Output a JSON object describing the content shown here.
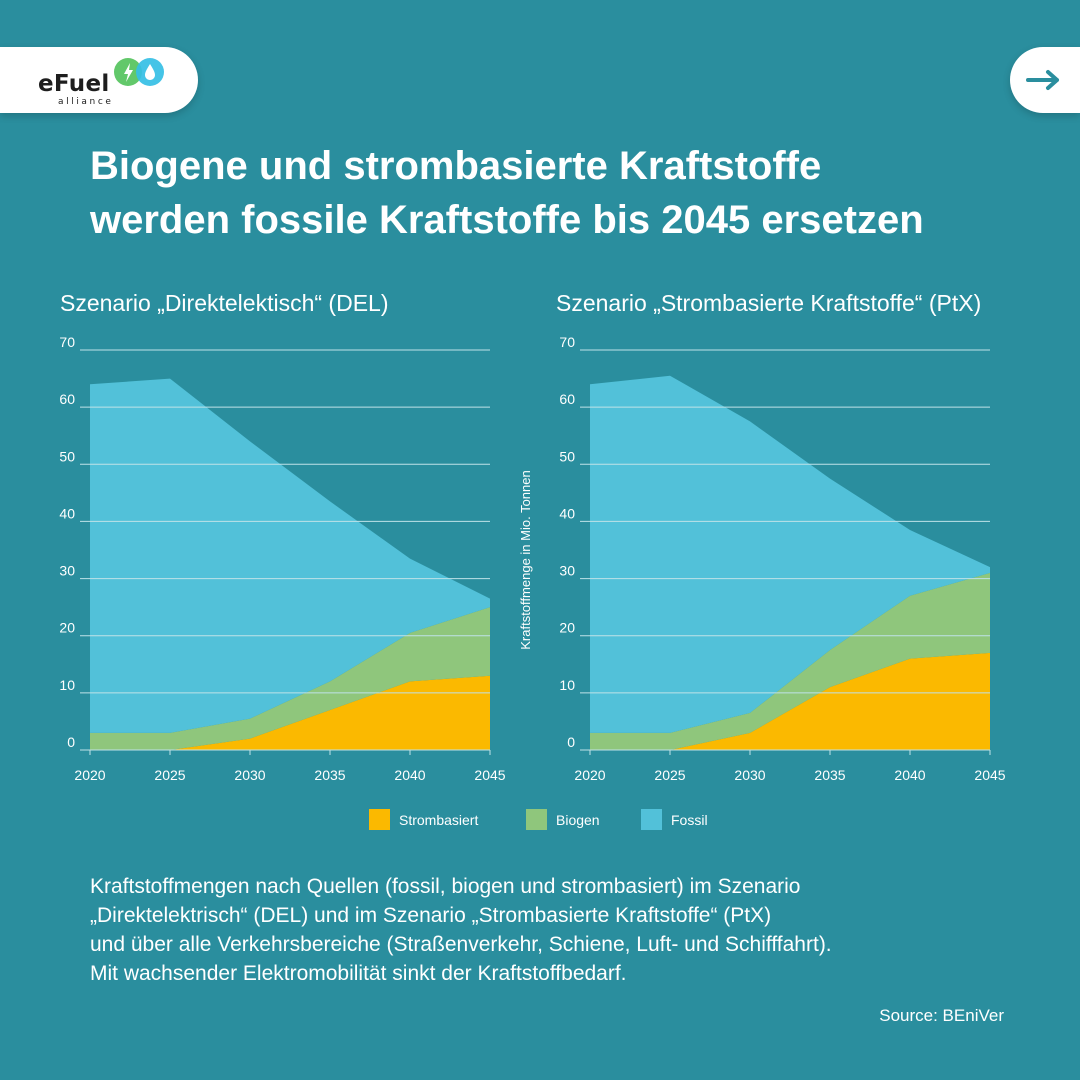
{
  "logo": {
    "word": "eFuel",
    "sub": "alliance"
  },
  "headline": {
    "line1": "Biogene und strombasierte Kraftstoffe",
    "line2": "werden fossile Kraftstoffe bis 2045 ersetzen"
  },
  "colors": {
    "background": "#2a8e9e",
    "strombasiert": "#fbb900",
    "biogen": "#8fc67c",
    "fossil": "#52c1d9",
    "grid": "#bfe2e8",
    "logo_green": "#62c86a",
    "logo_blue": "#35bfe5",
    "arrow": "#2a8e9e"
  },
  "chart_data": [
    {
      "type": "area",
      "stacked": true,
      "title": "Szenario „Direktelektisch“ (DEL)",
      "x": [
        2020,
        2025,
        2030,
        2035,
        2040,
        2045
      ],
      "xlabel": "",
      "ylabel": "",
      "ylim": [
        0,
        70
      ],
      "yticks": [
        0,
        10,
        20,
        30,
        40,
        50,
        60,
        70
      ],
      "grid": true,
      "series": [
        {
          "name": "Strombasiert",
          "values": [
            0,
            0,
            2,
            7,
            12,
            13
          ]
        },
        {
          "name": "Biogen",
          "values": [
            3,
            3,
            3.5,
            5,
            8.5,
            12
          ]
        },
        {
          "name": "Fossil",
          "values": [
            61,
            62,
            48.5,
            31.5,
            13,
            1.5
          ]
        }
      ]
    },
    {
      "type": "area",
      "stacked": true,
      "title": "Szenario „Strombasierte Kraftstoffe“ (PtX)",
      "x": [
        2020,
        2025,
        2030,
        2035,
        2040,
        2045
      ],
      "xlabel": "",
      "ylabel": "Kraftstoffmenge in Mio. Tonnen",
      "ylim": [
        0,
        70
      ],
      "yticks": [
        0,
        10,
        20,
        30,
        40,
        50,
        60,
        70
      ],
      "grid": true,
      "series": [
        {
          "name": "Strombasiert",
          "values": [
            0,
            0,
            3,
            11,
            16,
            17
          ]
        },
        {
          "name": "Biogen",
          "values": [
            3,
            3,
            3.5,
            6.5,
            11,
            14
          ]
        },
        {
          "name": "Fossil",
          "values": [
            61,
            62.5,
            51,
            30,
            11.5,
            1
          ]
        }
      ]
    }
  ],
  "legend": [
    {
      "label": "Strombasiert",
      "color_key": "strombasiert"
    },
    {
      "label": "Biogen",
      "color_key": "biogen"
    },
    {
      "label": "Fossil",
      "color_key": "fossil"
    }
  ],
  "description": {
    "line1": "Kraftstoffmengen nach Quellen (fossil, biogen und strombasiert) im Szenario",
    "line2": "„Direktelektrisch“ (DEL) und im Szenario „Strombasierte Kraftstoffe“ (PtX)",
    "line3": "und über alle Verkehrsbereiche (Straßenverkehr, Schiene, Luft- und Schifffahrt).",
    "line4": "Mit wachsender Elektromobilität sinkt der Kraftstoffbedarf."
  },
  "source": "Source: BEniVer"
}
